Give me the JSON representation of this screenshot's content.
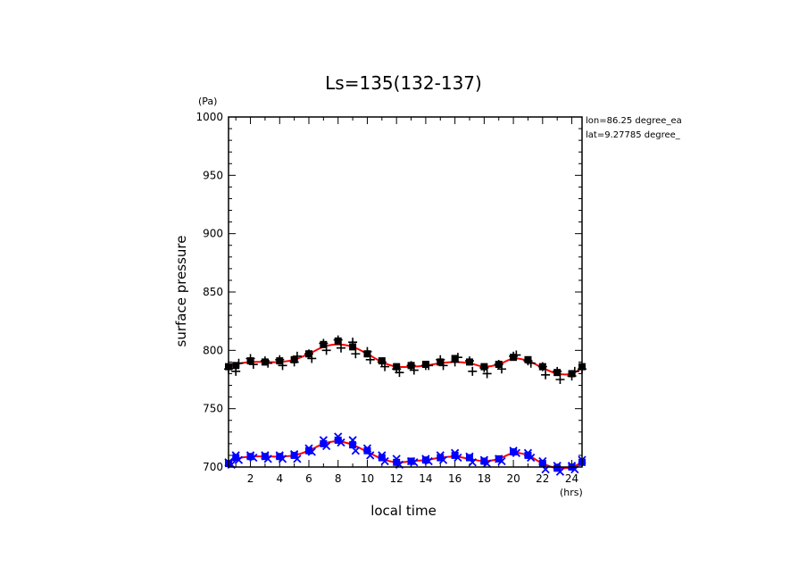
{
  "chart_data": {
    "type": "scatter",
    "title": "Ls=135(132-137)",
    "xlabel": "local time",
    "ylabel": "surface pressure",
    "x_unit": "(hrs)",
    "y_unit": "(Pa)",
    "xlim": [
      0.5,
      24.7
    ],
    "ylim": [
      700,
      1000
    ],
    "x_ticks": [
      2,
      4,
      6,
      8,
      10,
      12,
      14,
      16,
      18,
      20,
      22,
      24
    ],
    "y_ticks": [
      700,
      750,
      800,
      850,
      900,
      950,
      1000
    ],
    "annotations": [
      "lon=86.25 degree_ea",
      "lat=9.27785 degree_"
    ],
    "grid": false,
    "series": [
      {
        "marker": "square",
        "color": "#000000",
        "x": [
          0.5,
          1,
          2,
          3,
          4,
          5,
          6,
          7,
          8,
          9,
          10,
          11,
          12,
          13,
          14,
          15,
          16,
          17,
          18,
          19,
          20,
          21,
          22,
          23,
          24,
          24.7
        ],
        "y": [
          786,
          787,
          791,
          790,
          791,
          792,
          797,
          805,
          808,
          803,
          797,
          791,
          786,
          787,
          788,
          790,
          793,
          790,
          786,
          788,
          794,
          792,
          786,
          781,
          780,
          786
        ]
      },
      {
        "marker": "plus",
        "color": "#000000",
        "x": [
          0.5,
          1,
          1.2,
          2,
          2.2,
          3,
          3.2,
          4,
          4.2,
          5,
          5.2,
          6,
          6.2,
          7,
          7.2,
          8,
          8.2,
          9,
          9.2,
          10,
          10.2,
          11,
          11.2,
          12,
          12.2,
          13,
          13.2,
          14,
          14.2,
          15,
          15.2,
          16,
          16.2,
          17,
          17.2,
          18,
          18.2,
          19,
          19.2,
          20,
          20.2,
          21,
          21.2,
          22,
          22.2,
          23,
          23.2,
          24,
          24.2,
          24.7
        ],
        "y": [
          784,
          782,
          789,
          793,
          788,
          791,
          789,
          792,
          787,
          790,
          795,
          797,
          793,
          806,
          800,
          809,
          802,
          807,
          797,
          799,
          792,
          790,
          786,
          784,
          781,
          787,
          783,
          787,
          787,
          792,
          787,
          790,
          794,
          791,
          782,
          785,
          780,
          788,
          784,
          795,
          796,
          791,
          789,
          786,
          779,
          782,
          775,
          778,
          782,
          784
        ]
      },
      {
        "marker": "x",
        "color": "#0000ff",
        "x": [
          0.5,
          0.7,
          1,
          1.2,
          2,
          2.2,
          3,
          3.2,
          4,
          4.2,
          5,
          5.2,
          6,
          6.2,
          7,
          7.2,
          8,
          8.2,
          9,
          9.2,
          10,
          10.2,
          11,
          11.2,
          12,
          12.2,
          13,
          13.2,
          14,
          14.2,
          15,
          15.2,
          16,
          16.2,
          17,
          17.2,
          18,
          18.2,
          19,
          19.2,
          20,
          20.2,
          21,
          21.2,
          22,
          22.2,
          23,
          23.2,
          24,
          24.2,
          24.7
        ],
        "y": [
          704,
          702,
          710,
          706,
          710,
          708,
          710,
          707,
          710,
          707,
          711,
          707,
          716,
          713,
          723,
          718,
          726,
          721,
          723,
          714,
          716,
          710,
          710,
          705,
          707,
          702,
          705,
          704,
          707,
          705,
          710,
          706,
          712,
          708,
          709,
          704,
          706,
          703,
          707,
          705,
          714,
          712,
          712,
          708,
          705,
          698,
          701,
          696,
          701,
          698,
          706
        ]
      },
      {
        "marker": "square",
        "color": "#0000ff",
        "x": [
          0.5,
          1,
          2,
          3,
          4,
          5,
          6,
          7,
          8,
          9,
          10,
          11,
          12,
          13,
          14,
          15,
          16,
          17,
          18,
          19,
          20,
          21,
          22,
          23,
          24,
          24.7
        ],
        "y": [
          703,
          708,
          709,
          709,
          709,
          710,
          714,
          720,
          723,
          719,
          714,
          708,
          704,
          705,
          706,
          708,
          710,
          708,
          705,
          707,
          713,
          710,
          703,
          699,
          700,
          704
        ]
      }
    ],
    "fit_lines": [
      {
        "color": "#ff0000",
        "x": [
          0.5,
          1,
          2,
          3,
          4,
          5,
          6,
          7,
          8,
          9,
          10,
          11,
          12,
          13,
          14,
          15,
          16,
          17,
          18,
          19,
          20,
          21,
          22,
          23,
          24,
          24.7
        ],
        "y": [
          786,
          788,
          790,
          790,
          790,
          792,
          797,
          803,
          805,
          803,
          797,
          790,
          786,
          786,
          787,
          789,
          790,
          789,
          786,
          788,
          793,
          791,
          785,
          780,
          780,
          785
        ]
      },
      {
        "color": "#ff0000",
        "x": [
          0.5,
          1,
          2,
          3,
          4,
          5,
          6,
          7,
          8,
          9,
          10,
          11,
          12,
          13,
          14,
          15,
          16,
          17,
          18,
          19,
          20,
          21,
          22,
          23,
          24,
          24.7
        ],
        "y": [
          704,
          707,
          709,
          709,
          709,
          710,
          714,
          720,
          722,
          719,
          713,
          707,
          704,
          705,
          706,
          708,
          709,
          707,
          705,
          707,
          712,
          710,
          703,
          699,
          700,
          704
        ]
      }
    ]
  }
}
